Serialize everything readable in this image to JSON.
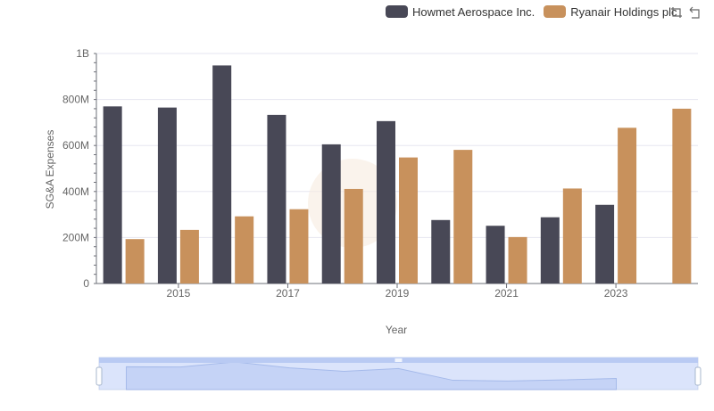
{
  "legend": [
    {
      "name": "Howmet Aerospace Inc.",
      "color": "#484856"
    },
    {
      "name": "Ryanair Holdings plc",
      "color": "#c8915c"
    }
  ],
  "toolbox": [
    "restore-icon",
    "zoom-icon"
  ],
  "chart_data": {
    "type": "bar",
    "categories": [
      "2014",
      "2015",
      "2016",
      "2017",
      "2018",
      "2019",
      "2020",
      "2021",
      "2022",
      "2023",
      "2024"
    ],
    "x_tick_labels": [
      "2015",
      "2017",
      "2019",
      "2021",
      "2023"
    ],
    "series": [
      {
        "name": "Howmet Aerospace Inc.",
        "color": "#484856",
        "values": [
          770000000,
          765000000,
          948000000,
          733000000,
          605000000,
          706000000,
          276000000,
          251000000,
          288000000,
          342000000,
          null
        ]
      },
      {
        "name": "Ryanair Holdings plc",
        "color": "#c8915c",
        "values": [
          193000000,
          233000000,
          292000000,
          323000000,
          411000000,
          548000000,
          581000000,
          202000000,
          413000000,
          677000000,
          760000000
        ]
      }
    ],
    "xlabel": "Year",
    "ylabel": "SG&A Expenses",
    "ylim": [
      0,
      1000000000
    ],
    "y_tick_labels": [
      "0",
      "200M",
      "400M",
      "600M",
      "800M",
      "1B"
    ],
    "grid": true,
    "legend_position": "top-right",
    "datazoom": {
      "range_percent": [
        0,
        100
      ]
    }
  }
}
